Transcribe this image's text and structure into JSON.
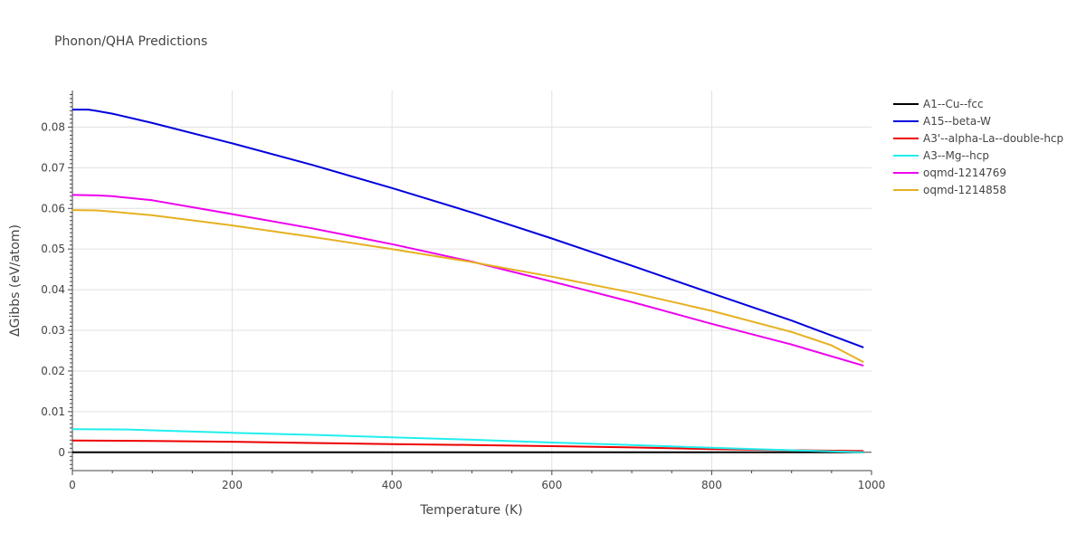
{
  "chart_data": {
    "type": "line",
    "title": "Phonon/QHA Predictions",
    "xlabel": "Temperature (K)",
    "ylabel": "ΔGibbs (eV/atom)",
    "xlim": [
      0,
      1000
    ],
    "ylim": [
      -0.0045,
      0.089
    ],
    "x_ticks": [
      0,
      200,
      400,
      600,
      800,
      1000
    ],
    "y_ticks": [
      0,
      0.01,
      0.02,
      0.03,
      0.04,
      0.05,
      0.06,
      0.07,
      0.08
    ],
    "x_tick_labels": [
      "0",
      "200",
      "400",
      "600",
      "800",
      "1000"
    ],
    "y_tick_labels": [
      "0",
      "0.01",
      "0.02",
      "0.03",
      "0.04",
      "0.05",
      "0.06",
      "0.07",
      "0.08"
    ],
    "grid": true,
    "legend_position": "right",
    "series": [
      {
        "name": "A1--Cu--fcc",
        "color": "#000000",
        "x": [
          0,
          100,
          200,
          300,
          400,
          500,
          600,
          700,
          800,
          900,
          990
        ],
        "y": [
          0,
          0,
          0,
          0,
          0,
          0,
          0,
          0,
          0,
          0,
          0
        ]
      },
      {
        "name": "A15--beta-W",
        "color": "#0000dd",
        "x": [
          0,
          20,
          30,
          50,
          100,
          200,
          300,
          400,
          500,
          600,
          700,
          800,
          900,
          990
        ],
        "y": [
          0.0843,
          0.0843,
          0.084,
          0.0833,
          0.081,
          0.076,
          0.0707,
          0.065,
          0.059,
          0.0526,
          0.0459,
          0.0391,
          0.0324,
          0.0258
        ]
      },
      {
        "name": "A3'--alpha-La--double-hcp",
        "color": "#ee0000",
        "x": [
          0,
          100,
          200,
          300,
          400,
          500,
          600,
          700,
          800,
          900,
          990
        ],
        "y": [
          0.0029,
          0.0028,
          0.0026,
          0.0023,
          0.002,
          0.0018,
          0.0015,
          0.0012,
          0.0008,
          0.0005,
          0.0003
        ]
      },
      {
        "name": "A3--Mg--hcp",
        "color": "#22eeee",
        "x": [
          0,
          70,
          100,
          200,
          300,
          400,
          500,
          600,
          700,
          800,
          900,
          990
        ],
        "y": [
          0.0057,
          0.0056,
          0.0054,
          0.0048,
          0.0043,
          0.0037,
          0.0031,
          0.0024,
          0.0018,
          0.0011,
          0.0005,
          0.0
        ]
      },
      {
        "name": "oqmd-1214769",
        "color": "#ee00ee",
        "x": [
          0,
          30,
          50,
          100,
          200,
          300,
          400,
          500,
          600,
          700,
          800,
          900,
          990
        ],
        "y": [
          0.0633,
          0.0632,
          0.063,
          0.062,
          0.0586,
          0.0551,
          0.0512,
          0.0469,
          0.042,
          0.037,
          0.0316,
          0.0265,
          0.0213
        ]
      },
      {
        "name": "oqmd-1214858",
        "color": "#e6b020",
        "x": [
          0,
          30,
          50,
          100,
          200,
          300,
          400,
          500,
          600,
          700,
          800,
          900,
          950,
          990
        ],
        "y": [
          0.0596,
          0.0595,
          0.0592,
          0.0583,
          0.0558,
          0.053,
          0.05,
          0.0468,
          0.0432,
          0.0393,
          0.0348,
          0.0296,
          0.0263,
          0.0222
        ]
      }
    ]
  }
}
